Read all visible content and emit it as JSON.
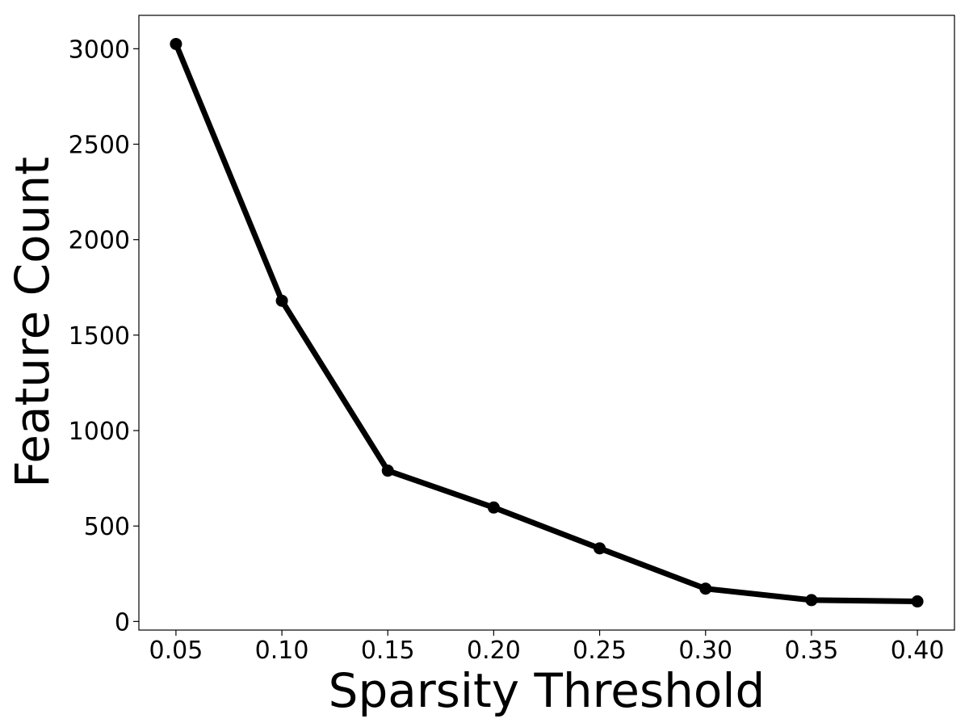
{
  "chart_data": {
    "type": "line",
    "title": "",
    "xlabel": "Sparsity Threshold",
    "ylabel": "Feature Count",
    "x": [
      0.05,
      0.1,
      0.15,
      0.2,
      0.25,
      0.3,
      0.35,
      0.4
    ],
    "x_tick_labels": [
      "0.05",
      "0.10",
      "0.15",
      "0.20",
      "0.25",
      "0.30",
      "0.35",
      "0.40"
    ],
    "y_ticks": [
      0,
      500,
      1000,
      1500,
      2000,
      2500,
      3000
    ],
    "y_tick_labels": [
      "0",
      "500",
      "1000",
      "1500",
      "2000",
      "2500",
      "3000"
    ],
    "xlim": [
      0.0325,
      0.4175
    ],
    "ylim": [
      -45,
      3175
    ],
    "grid": false,
    "legend": "none",
    "series": [
      {
        "values": [
          3025,
          1680,
          790,
          597,
          383,
          172,
          112,
          105
        ],
        "color": "#000000",
        "marker": "circle"
      }
    ]
  }
}
